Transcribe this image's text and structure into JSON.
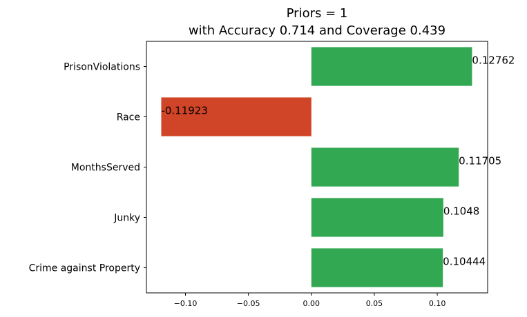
{
  "chart_data": {
    "type": "bar",
    "orientation": "horizontal",
    "title": [
      "Priors = 1",
      "with Accuracy 0.714 and Coverage 0.439"
    ],
    "categories": [
      "PrisonViolations",
      "Race",
      "MonthsServed",
      "Junky",
      "Crime against Property"
    ],
    "values": [
      0.12762,
      -0.11923,
      0.11705,
      0.1048,
      0.10444
    ],
    "value_labels": [
      "0.12762",
      "-0.11923",
      "0.11705",
      "0.1048",
      "0.10444"
    ],
    "xlim": [
      -0.131,
      0.14
    ],
    "xticks": [
      -0.1,
      -0.05,
      0.0,
      0.05,
      0.1
    ],
    "xtick_labels": [
      "−0.10",
      "−0.05",
      "0.00",
      "0.05",
      "0.10"
    ],
    "xlabel": "",
    "ylabel": "",
    "grid": false,
    "legend": "none",
    "colors": {
      "positive": "#33a852",
      "negative": "#d04428"
    }
  }
}
